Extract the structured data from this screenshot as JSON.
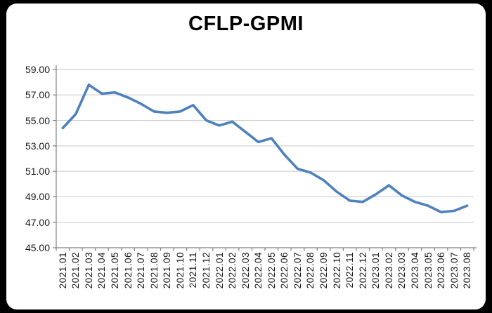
{
  "chart_data": {
    "type": "line",
    "title": "CFLP-GPMI",
    "series_name": "CFLP-GPMI",
    "categories": [
      "2021.01",
      "2021.02",
      "2021.03",
      "2021.04",
      "2021.05",
      "2021.06",
      "2021.07",
      "2021.08",
      "2021.09",
      "2021.10",
      "2021.11",
      "2021.12",
      "2022.01",
      "2022.02",
      "2022.03",
      "2022.04",
      "2022.05",
      "2022.06",
      "2022.07",
      "2022.08",
      "2022.09",
      "2022.10",
      "2022.11",
      "2022.12",
      "2023.01",
      "2023.02",
      "2023.03",
      "2023.04",
      "2023.05",
      "2023.06",
      "2023.07",
      "2023.08"
    ],
    "values": [
      54.4,
      55.5,
      57.8,
      57.1,
      57.2,
      56.8,
      56.3,
      55.7,
      55.6,
      55.7,
      56.2,
      55.0,
      54.6,
      54.9,
      54.1,
      53.3,
      53.6,
      52.3,
      51.2,
      50.9,
      50.3,
      49.4,
      48.7,
      48.6,
      49.2,
      49.9,
      49.1,
      48.6,
      48.3,
      47.8,
      47.9,
      48.3
    ],
    "ylim": [
      45,
      59
    ],
    "ytick_step": 2,
    "ytick_labels": [
      "59.00",
      "57.00",
      "55.00",
      "53.00",
      "51.00",
      "49.00",
      "47.00",
      "45.00"
    ],
    "xlabel": "",
    "ylabel": "",
    "grid": true,
    "legend": "none",
    "colors": {
      "line": "#4F81BD",
      "gridline": "#C6C6C6",
      "axis": "#808080",
      "label": "#1a1a1a",
      "title": "#000000",
      "card_background": "#FFFFFF",
      "frame_background": "#000000"
    }
  }
}
